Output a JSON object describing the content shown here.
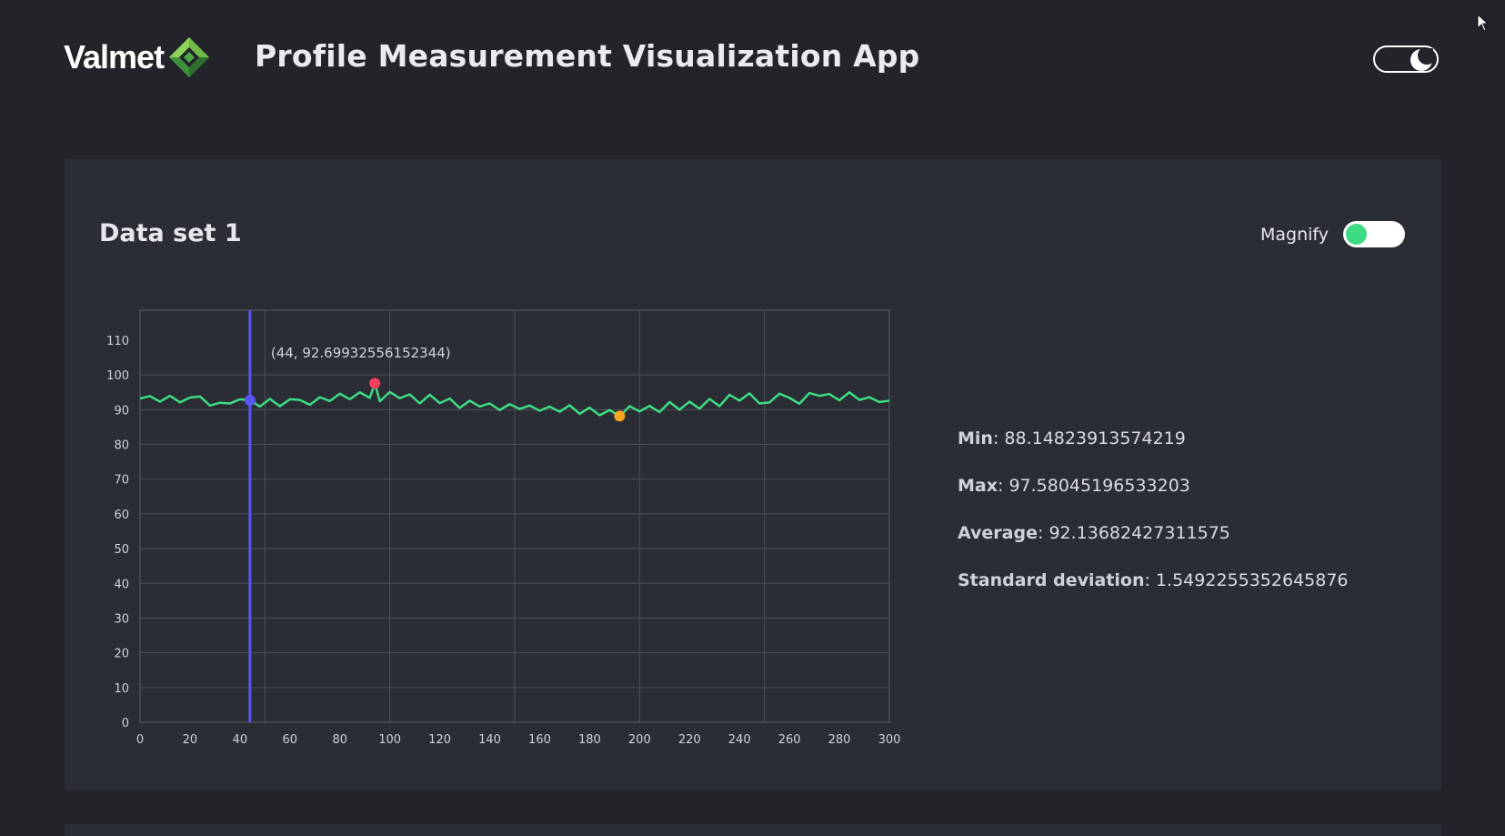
{
  "header": {
    "logo_text": "Valmet",
    "title": "Profile Measurement Visualization App",
    "theme_toggle_icon": "moon-icon"
  },
  "card": {
    "title": "Data set 1",
    "magnify_label": "Magnify",
    "magnify_on": true
  },
  "stats": {
    "min_label": "Min",
    "min_value": "88.14823913574219",
    "max_label": "Max",
    "max_value": "97.58045196533203",
    "avg_label": "Average",
    "avg_value": "92.13682427311575",
    "std_label": "Standard deviation",
    "std_value": "1.5492255352645876"
  },
  "colors": {
    "line": "#3ddc84",
    "cursor": "#5b55f5",
    "max_point": "#f0405e",
    "min_point": "#f5a524",
    "grid": "#4b4f57"
  },
  "chart_data": {
    "type": "line",
    "title": "",
    "xlabel": "",
    "ylabel": "",
    "xlim": [
      0,
      300
    ],
    "ylim": [
      0,
      110
    ],
    "x_ticks": [
      0,
      20,
      40,
      60,
      80,
      100,
      120,
      140,
      160,
      180,
      200,
      220,
      240,
      260,
      280,
      300
    ],
    "y_ticks": [
      0,
      10,
      20,
      30,
      40,
      50,
      60,
      70,
      80,
      90,
      100,
      110
    ],
    "x_grid": [
      50,
      100,
      150,
      200,
      250,
      300
    ],
    "y_grid": [
      0,
      10,
      20,
      30,
      40,
      50,
      60,
      70,
      80,
      90,
      100
    ],
    "cursor": {
      "x": 44,
      "y": 92.69932556152344,
      "label": "(44, 92.69932556152344)"
    },
    "max_point": {
      "x": 94,
      "y": 97.58045196533203
    },
    "min_point": {
      "x": 192,
      "y": 88.14823913574219
    },
    "series": [
      {
        "name": "Data set 1",
        "x": [
          0,
          4,
          8,
          12,
          16,
          20,
          24,
          28,
          32,
          36,
          40,
          44,
          48,
          52,
          56,
          60,
          64,
          68,
          72,
          76,
          80,
          84,
          88,
          92,
          94,
          96,
          100,
          104,
          108,
          112,
          116,
          120,
          124,
          128,
          132,
          136,
          140,
          144,
          148,
          152,
          156,
          160,
          164,
          168,
          172,
          176,
          180,
          184,
          188,
          192,
          196,
          200,
          204,
          208,
          212,
          216,
          220,
          224,
          228,
          232,
          236,
          240,
          244,
          248,
          252,
          256,
          260,
          264,
          268,
          272,
          276,
          280,
          284,
          288,
          292,
          296,
          300
        ],
        "values": [
          93.2,
          93.9,
          92.3,
          94.0,
          92.1,
          93.5,
          93.8,
          91.2,
          92.0,
          91.8,
          93.0,
          92.7,
          90.9,
          93.1,
          91.0,
          93.0,
          92.8,
          91.4,
          93.6,
          92.5,
          94.6,
          93.0,
          95.0,
          93.4,
          97.6,
          92.4,
          95.1,
          93.3,
          94.4,
          91.8,
          94.3,
          91.9,
          93.2,
          90.5,
          92.6,
          90.9,
          91.8,
          89.9,
          91.6,
          90.2,
          91.2,
          89.7,
          90.9,
          89.4,
          91.3,
          88.8,
          90.6,
          88.4,
          89.9,
          88.1,
          91.0,
          89.5,
          91.1,
          89.3,
          92.2,
          90.0,
          92.3,
          90.3,
          93.1,
          91.0,
          94.3,
          92.6,
          94.7,
          91.8,
          92.1,
          94.6,
          93.4,
          91.7,
          94.8,
          94.0,
          94.5,
          92.7,
          95.0,
          92.8,
          93.6,
          92.2,
          92.6
        ]
      }
    ]
  }
}
